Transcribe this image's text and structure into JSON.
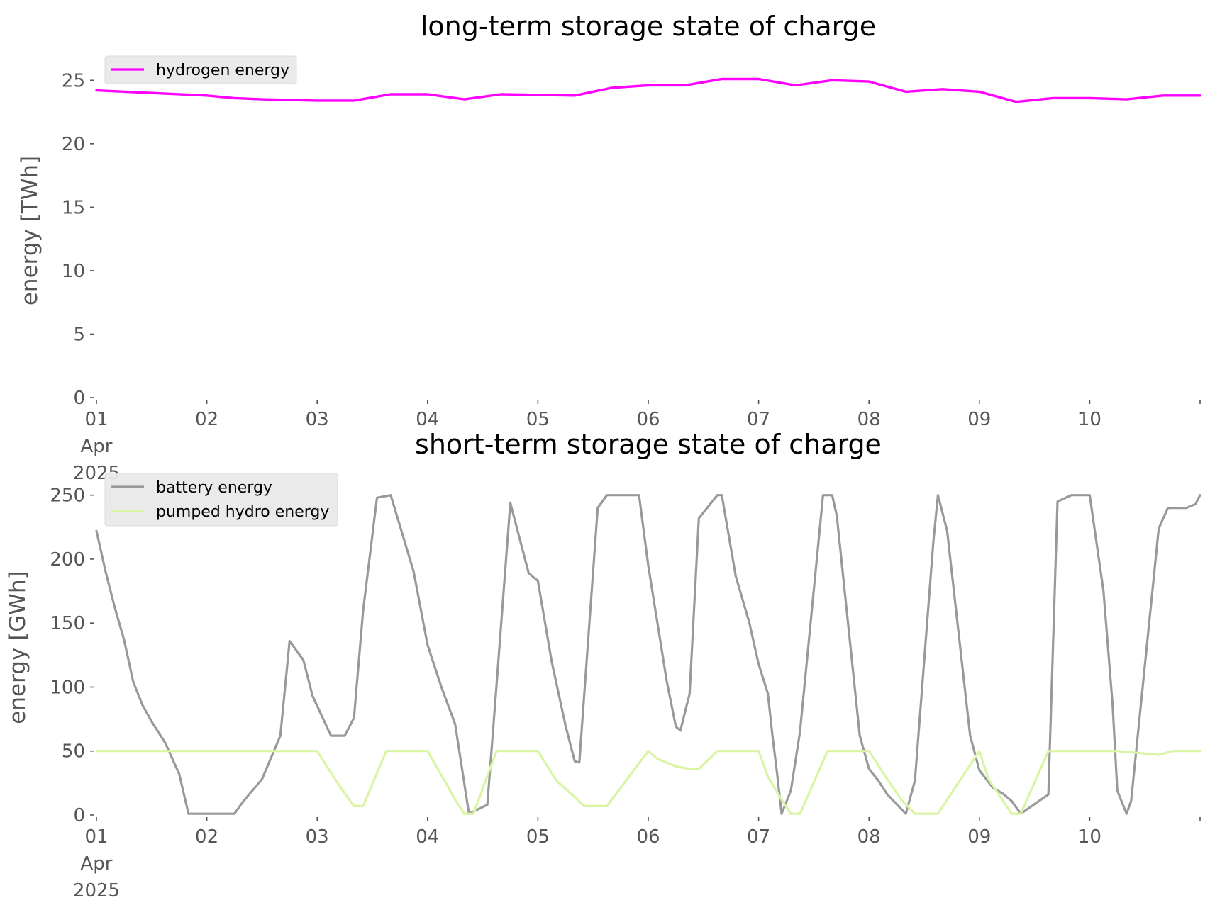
{
  "chart_data": [
    {
      "type": "line",
      "title": "long-term storage state of charge",
      "ylabel": "energy [TWh]",
      "xlabel": "",
      "xlim": [
        "2025-04-01T00:00",
        "2025-04-11T00:00"
      ],
      "ylim": [
        0,
        26.3
      ],
      "yticks": [
        0,
        5,
        10,
        15,
        20,
        25
      ],
      "xtick_labels": [
        [
          "01",
          "Apr",
          "2025"
        ],
        [
          "02"
        ],
        [
          "03"
        ],
        [
          "04"
        ],
        [
          "05"
        ],
        [
          "06"
        ],
        [
          "07"
        ],
        [
          "08"
        ],
        [
          "09"
        ],
        [
          "10"
        ]
      ],
      "grid": false,
      "legend_position": "top-left",
      "series": [
        {
          "name": "hydrogen energy",
          "color": "#ff00ff",
          "x": [
            "2025-04-01T00:00",
            "2025-04-01T12:00",
            "2025-04-02T00:00",
            "2025-04-02T06:00",
            "2025-04-02T12:00",
            "2025-04-03T00:00",
            "2025-04-03T08:00",
            "2025-04-03T16:00",
            "2025-04-04T00:00",
            "2025-04-04T08:00",
            "2025-04-04T16:00",
            "2025-04-05T08:00",
            "2025-04-05T16:00",
            "2025-04-06T00:00",
            "2025-04-06T08:00",
            "2025-04-06T16:00",
            "2025-04-07T00:00",
            "2025-04-07T08:00",
            "2025-04-07T16:00",
            "2025-04-08T00:00",
            "2025-04-08T08:00",
            "2025-04-08T16:00",
            "2025-04-09T00:00",
            "2025-04-09T08:00",
            "2025-04-09T16:00",
            "2025-04-10T00:00",
            "2025-04-10T08:00",
            "2025-04-10T16:00",
            "2025-04-11T00:00"
          ],
          "y": [
            24.2,
            24.0,
            23.8,
            23.6,
            23.5,
            23.4,
            23.4,
            23.9,
            23.9,
            23.5,
            23.9,
            23.8,
            24.4,
            24.6,
            24.6,
            25.1,
            25.1,
            24.6,
            25.0,
            24.9,
            24.1,
            24.3,
            24.1,
            23.3,
            23.6,
            23.6,
            23.5,
            23.8,
            23.8
          ]
        }
      ]
    },
    {
      "type": "line",
      "title": "short-term storage state of charge",
      "ylabel": "energy [GWh]",
      "xlabel": "",
      "xlim": [
        "2025-04-01T00:00",
        "2025-04-11T00:00"
      ],
      "ylim": [
        0,
        262
      ],
      "yticks": [
        0,
        50,
        100,
        150,
        200,
        250
      ],
      "xtick_labels": [
        [
          "01",
          "Apr",
          "2025"
        ],
        [
          "02"
        ],
        [
          "03"
        ],
        [
          "04"
        ],
        [
          "05"
        ],
        [
          "06"
        ],
        [
          "07"
        ],
        [
          "08"
        ],
        [
          "09"
        ],
        [
          "10"
        ]
      ],
      "grid": false,
      "legend_position": "top-left",
      "series": [
        {
          "name": "battery energy",
          "color": "#999999",
          "x": [
            "2025-04-01T00:00",
            "2025-04-01T02:00",
            "2025-04-01T04:00",
            "2025-04-01T06:00",
            "2025-04-01T08:00",
            "2025-04-01T10:00",
            "2025-04-01T12:00",
            "2025-04-01T15:00",
            "2025-04-01T18:00",
            "2025-04-01T20:00",
            "2025-04-02T00:00",
            "2025-04-02T06:00",
            "2025-04-02T08:00",
            "2025-04-02T12:00",
            "2025-04-02T16:00",
            "2025-04-02T18:00",
            "2025-04-02T21:00",
            "2025-04-02T23:00",
            "2025-04-03T03:00",
            "2025-04-03T06:00",
            "2025-04-03T08:00",
            "2025-04-03T10:00",
            "2025-04-03T13:00",
            "2025-04-03T16:00",
            "2025-04-03T21:00",
            "2025-04-04T00:00",
            "2025-04-04T03:00",
            "2025-04-04T06:00",
            "2025-04-04T09:00",
            "2025-04-04T13:00",
            "2025-04-04T15:00",
            "2025-04-04T18:00",
            "2025-04-04T22:00",
            "2025-04-05T00:00",
            "2025-04-05T03:00",
            "2025-04-05T06:00",
            "2025-04-05T08:00",
            "2025-04-05T09:00",
            "2025-04-05T13:00",
            "2025-04-05T15:00",
            "2025-04-05T22:00",
            "2025-04-06T00:00",
            "2025-04-06T04:00",
            "2025-04-06T06:00",
            "2025-04-06T07:00",
            "2025-04-06T09:00",
            "2025-04-06T11:00",
            "2025-04-06T15:00",
            "2025-04-06T16:00",
            "2025-04-06T19:00",
            "2025-04-06T22:00",
            "2025-04-07T00:00",
            "2025-04-07T02:00",
            "2025-04-07T03:00",
            "2025-04-07T04:00",
            "2025-04-07T05:00",
            "2025-04-07T07:00",
            "2025-04-07T09:00",
            "2025-04-07T14:00",
            "2025-04-07T16:00",
            "2025-04-07T17:00",
            "2025-04-07T22:00",
            "2025-04-08T00:00",
            "2025-04-08T02:00",
            "2025-04-08T04:00",
            "2025-04-08T08:00",
            "2025-04-08T10:00",
            "2025-04-08T14:00",
            "2025-04-08T15:00",
            "2025-04-08T17:00",
            "2025-04-08T22:00",
            "2025-04-09T00:00",
            "2025-04-09T03:00",
            "2025-04-09T05:00",
            "2025-04-09T07:00",
            "2025-04-09T09:00",
            "2025-04-09T15:00",
            "2025-04-09T17:00",
            "2025-04-09T20:00",
            "2025-04-09T22:00",
            "2025-04-10T00:00",
            "2025-04-10T03:00",
            "2025-04-10T05:00",
            "2025-04-10T06:00",
            "2025-04-10T08:00",
            "2025-04-10T09:00",
            "2025-04-10T15:00",
            "2025-04-10T17:00",
            "2025-04-10T21:00",
            "2025-04-10T23:00",
            "2025-04-11T00:00"
          ],
          "y": [
            222,
            190,
            162,
            137,
            104,
            86,
            73,
            56,
            32,
            1,
            1,
            1,
            11,
            28,
            62,
            136,
            121,
            93,
            62,
            62,
            76,
            160,
            248,
            250,
            190,
            133,
            100,
            71,
            1,
            8,
            101,
            244,
            189,
            183,
            120,
            70,
            42,
            41,
            240,
            250,
            250,
            195,
            105,
            69,
            66,
            95,
            232,
            250,
            250,
            187,
            150,
            118,
            95,
            62,
            33,
            1,
            19,
            65,
            250,
            250,
            234,
            62,
            36,
            27,
            16,
            1,
            27,
            214,
            250,
            222,
            62,
            35,
            21,
            17,
            11,
            1,
            16,
            245,
            250,
            250,
            250,
            175,
            85,
            19,
            1,
            11,
            224,
            240,
            240,
            243,
            250
          ]
        },
        {
          "name": "pumped hydro energy",
          "color": "#d9f5a3",
          "x": [
            "2025-04-01T00:00",
            "2025-04-03T00:00",
            "2025-04-03T03:00",
            "2025-04-03T05:00",
            "2025-04-03T08:00",
            "2025-04-03T10:00",
            "2025-04-03T15:00",
            "2025-04-04T00:00",
            "2025-04-04T04:00",
            "2025-04-04T06:00",
            "2025-04-04T08:00",
            "2025-04-04T10:00",
            "2025-04-04T15:00",
            "2025-04-05T00:00",
            "2025-04-05T04:00",
            "2025-04-05T08:00",
            "2025-04-05T10:00",
            "2025-04-05T15:00",
            "2025-04-06T00:00",
            "2025-04-06T02:00",
            "2025-04-06T06:00",
            "2025-04-06T09:00",
            "2025-04-06T11:00",
            "2025-04-06T15:00",
            "2025-04-07T00:00",
            "2025-04-07T02:00",
            "2025-04-07T05:00",
            "2025-04-07T07:00",
            "2025-04-07T09:00",
            "2025-04-07T15:00",
            "2025-04-08T00:00",
            "2025-04-08T04:00",
            "2025-04-08T07:00",
            "2025-04-08T10:00",
            "2025-04-08T15:00",
            "2025-04-09T00:00",
            "2025-04-09T02:00",
            "2025-04-09T05:00",
            "2025-04-09T07:00",
            "2025-04-09T09:00",
            "2025-04-09T15:00",
            "2025-04-10T00:00",
            "2025-04-10T06:00",
            "2025-04-10T15:00",
            "2025-04-10T18:00",
            "2025-04-11T00:00"
          ],
          "y": [
            50,
            50,
            33,
            22,
            7,
            7,
            50,
            50,
            25,
            12,
            1,
            1,
            50,
            50,
            27,
            14,
            7,
            7,
            50,
            44,
            38,
            36,
            36,
            50,
            50,
            30,
            12,
            1,
            1,
            50,
            50,
            28,
            12,
            1,
            1,
            50,
            28,
            12,
            1,
            1,
            50,
            50,
            50,
            47,
            50,
            50
          ]
        }
      ]
    }
  ]
}
